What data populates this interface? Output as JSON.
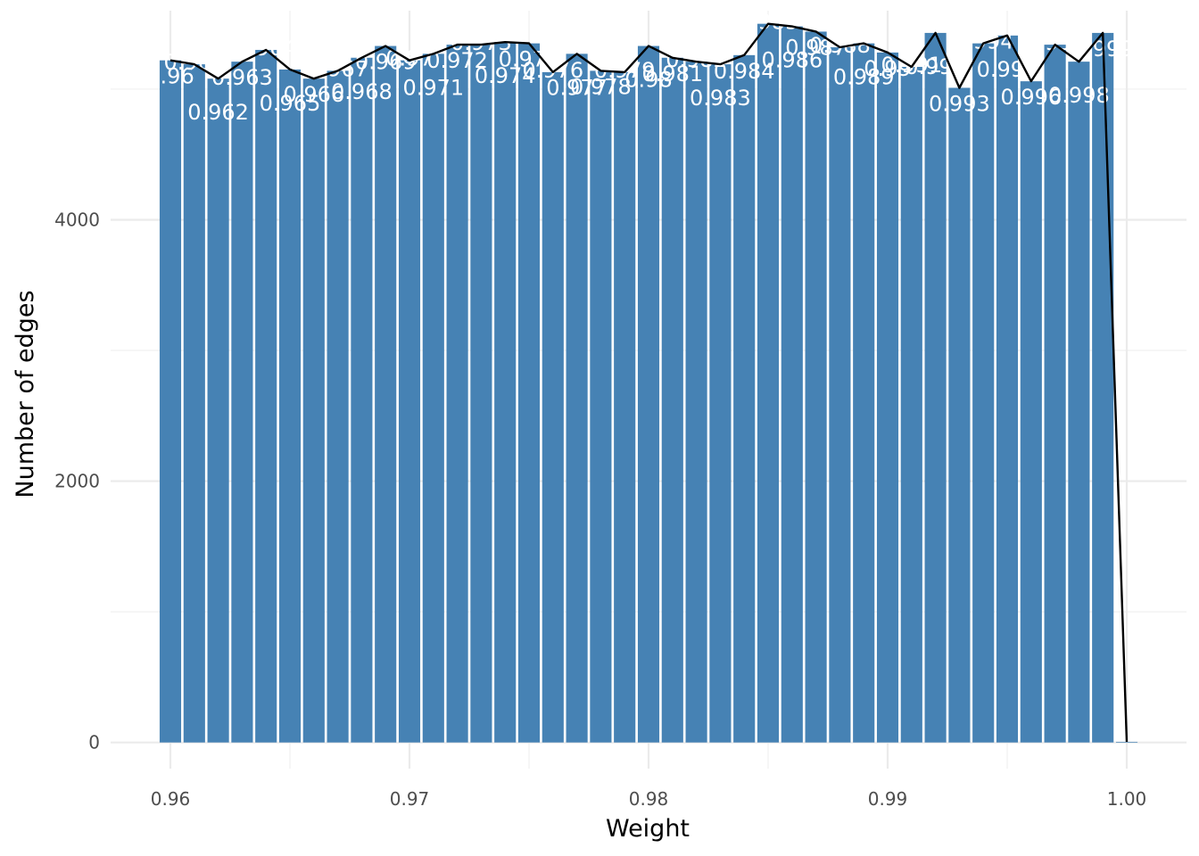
{
  "chart_data": {
    "type": "bar",
    "xlabel": "Weight",
    "ylabel": "Number of edges",
    "xlim": [
      0.9575,
      1.0025
    ],
    "ylim": [
      -200,
      5600
    ],
    "x_ticks": [
      "0.96",
      "0.97",
      "0.98",
      "0.99",
      "1.00"
    ],
    "x_tick_values": [
      0.96,
      0.97,
      0.98,
      0.99,
      1.0
    ],
    "y_ticks": [
      "0",
      "2000",
      "4000"
    ],
    "y_tick_values": [
      0,
      2000,
      4000
    ],
    "grid": true,
    "bar_color": "#4682b4",
    "line_color": "#000000",
    "x": [
      0.96,
      0.961,
      0.962,
      0.963,
      0.964,
      0.965,
      0.966,
      0.967,
      0.968,
      0.969,
      0.97,
      0.971,
      0.972,
      0.973,
      0.974,
      0.975,
      0.976,
      0.977,
      0.978,
      0.979,
      0.98,
      0.981,
      0.982,
      0.983,
      0.984,
      0.985,
      0.986,
      0.987,
      0.988,
      0.989,
      0.99,
      0.991,
      0.992,
      0.993,
      0.994,
      0.995,
      0.996,
      0.997,
      0.998,
      0.999,
      1.0
    ],
    "values": [
      5220,
      5190,
      5080,
      5210,
      5300,
      5150,
      5080,
      5140,
      5240,
      5330,
      5220,
      5270,
      5340,
      5340,
      5360,
      5350,
      5130,
      5270,
      5140,
      5130,
      5330,
      5240,
      5210,
      5190,
      5260,
      5500,
      5480,
      5440,
      5320,
      5350,
      5280,
      5170,
      5430,
      5010,
      5350,
      5410,
      5060,
      5340,
      5210,
      5430,
      5
    ],
    "bar_labels": [
      "0.96",
      "0.961",
      "0.962",
      "0.963",
      "0.964",
      "0.965",
      "0.966",
      "0.967",
      "0.968",
      "0.969",
      "0.97",
      "0.971",
      "0.972",
      "0.973",
      "0.974",
      "0.975",
      "0.976",
      "0.977",
      "0.978",
      "0.979",
      "0.98",
      "0.981",
      "0.982",
      "0.983",
      "0.984",
      "0.985",
      "0.986",
      "0.987",
      "0.988",
      "0.989",
      "0.99",
      "0.991",
      "0.992",
      "0.993",
      "0.994",
      "0.995",
      "0.996",
      "0.997",
      "0.998",
      "0.999",
      ""
    ]
  }
}
